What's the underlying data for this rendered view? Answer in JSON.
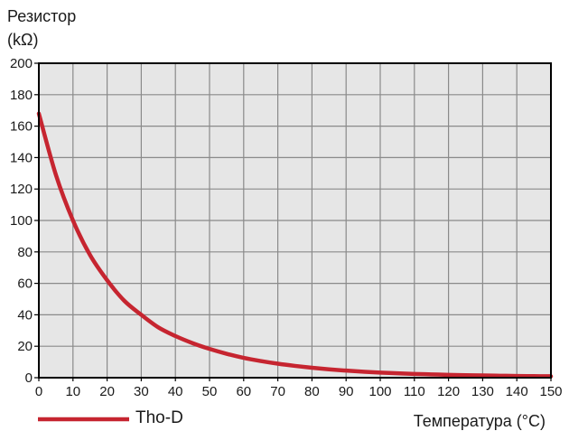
{
  "chart_data": {
    "type": "line",
    "title": "",
    "ylabel_lines": [
      "Резистор",
      "(kΩ)"
    ],
    "xlabel": "Температура (°C)",
    "xlim": [
      0,
      150
    ],
    "ylim": [
      0,
      200
    ],
    "xticks": [
      0,
      10,
      20,
      30,
      40,
      50,
      60,
      70,
      80,
      90,
      100,
      110,
      120,
      130,
      140,
      150
    ],
    "yticks": [
      0,
      20,
      40,
      60,
      80,
      100,
      120,
      140,
      160,
      180,
      200
    ],
    "grid": true,
    "legend": {
      "placement": "bottom-left"
    },
    "colors": {
      "series": "#c62530",
      "plot_background": "#e6e6e6",
      "grid": "#8a8a8a",
      "axis": "#000000"
    },
    "series": [
      {
        "name": "Tho-D",
        "x": [
          0,
          5,
          10,
          15,
          20,
          25,
          30,
          35,
          40,
          45,
          50,
          55,
          60,
          65,
          70,
          75,
          80,
          85,
          90,
          95,
          100,
          105,
          110,
          115,
          120,
          125,
          130,
          135,
          140,
          145,
          150
        ],
        "y": [
          168,
          129,
          100,
          78,
          62,
          49,
          40,
          32,
          26.5,
          22,
          18.3,
          15.2,
          12.6,
          10.6,
          8.9,
          7.5,
          6.3,
          5.3,
          4.5,
          3.8,
          3.2,
          2.8,
          2.4,
          2.1,
          1.8,
          1.6,
          1.4,
          1.25,
          1.1,
          1.0,
          0.9
        ]
      }
    ]
  }
}
